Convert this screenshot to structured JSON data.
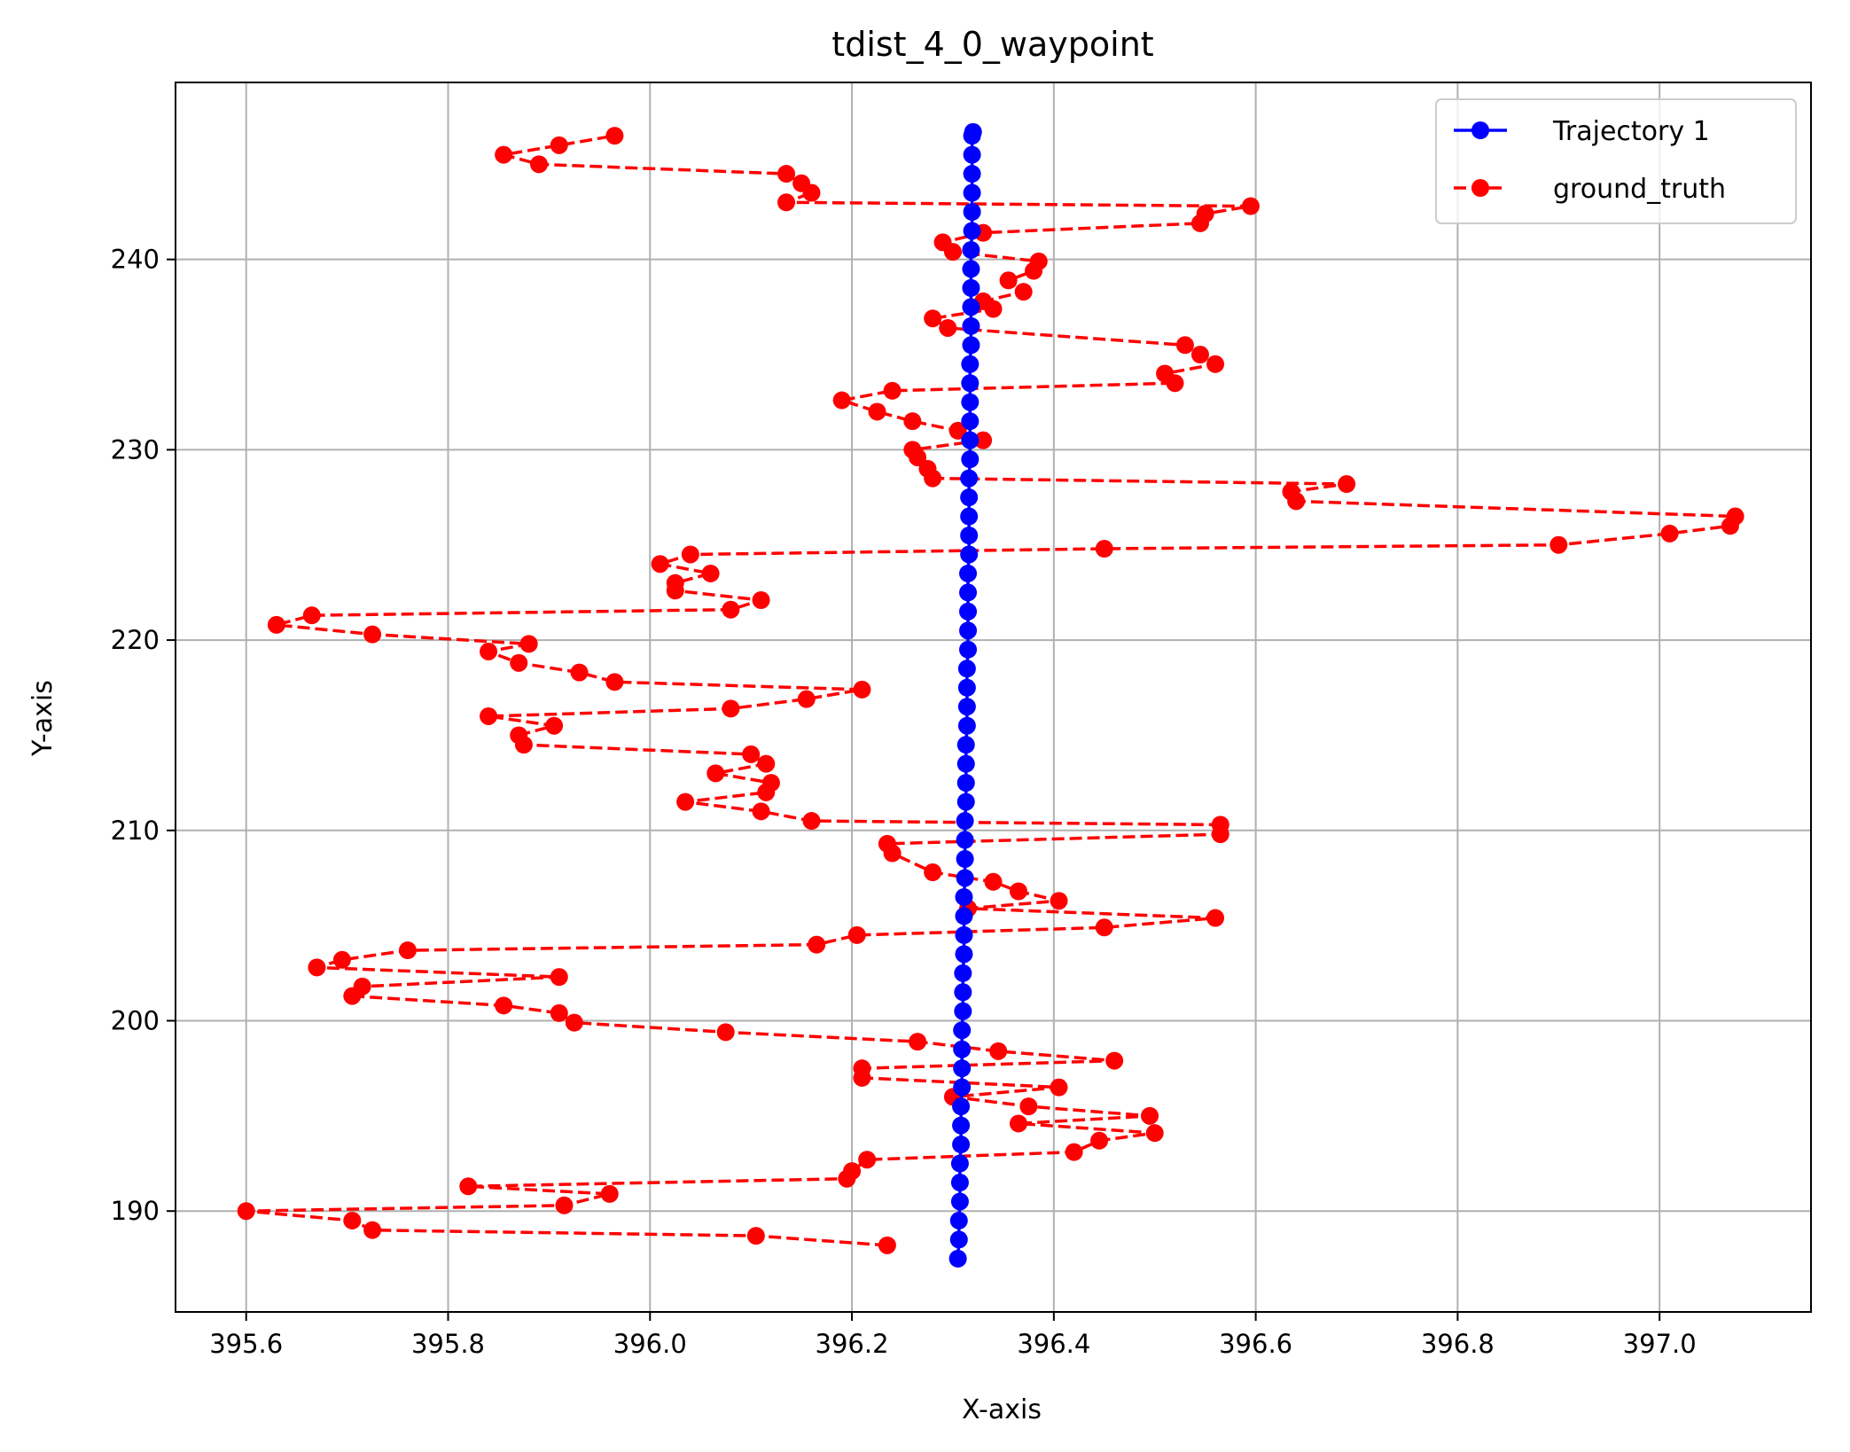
{
  "chart_data": {
    "type": "line",
    "title": "tdist_4_0_waypoint",
    "xlabel": "X-axis",
    "ylabel": "Y-axis",
    "xlim": [
      395.53,
      397.15
    ],
    "ylim": [
      184.7,
      249.3
    ],
    "xticks": [
      395.6,
      395.8,
      396.0,
      396.2,
      396.4,
      396.6,
      396.8,
      397.0
    ],
    "xtick_labels": [
      "395.6",
      "395.8",
      "396.0",
      "396.2",
      "396.4",
      "396.6",
      "396.8",
      "397.0"
    ],
    "yticks": [
      190,
      200,
      210,
      220,
      230,
      240
    ],
    "ytick_labels": [
      "190",
      "200",
      "210",
      "220",
      "230",
      "240"
    ],
    "grid": true,
    "legend_position": "top-right",
    "series": [
      {
        "name": "Trajectory 1",
        "color": "#0000ff",
        "line_style": "solid",
        "marker": "circle",
        "x": [
          396.305,
          396.306,
          396.306,
          396.307,
          396.307,
          396.307,
          396.308,
          396.308,
          396.308,
          396.309,
          396.309,
          396.309,
          396.309,
          396.31,
          396.31,
          396.31,
          396.311,
          396.311,
          396.311,
          396.311,
          396.312,
          396.312,
          396.312,
          396.312,
          396.313,
          396.313,
          396.313,
          396.313,
          396.314,
          396.314,
          396.314,
          396.314,
          396.315,
          396.315,
          396.315,
          396.315,
          396.315,
          396.316,
          396.316,
          396.316,
          396.316,
          396.316,
          396.317,
          396.317,
          396.317,
          396.317,
          396.317,
          396.317,
          396.318,
          396.318,
          396.318,
          396.318,
          396.318,
          396.318,
          396.319,
          396.319,
          396.319,
          396.319,
          396.319,
          396.319,
          396.32
        ],
        "y": [
          187.5,
          188.5,
          189.5,
          190.5,
          191.5,
          192.5,
          193.5,
          194.5,
          195.5,
          196.5,
          197.5,
          198.5,
          199.5,
          200.5,
          201.5,
          202.5,
          203.5,
          204.5,
          205.5,
          206.5,
          207.5,
          208.5,
          209.5,
          210.5,
          211.5,
          212.5,
          213.5,
          214.5,
          215.5,
          216.5,
          217.5,
          218.5,
          219.5,
          220.5,
          221.5,
          222.5,
          223.5,
          224.5,
          225.5,
          226.5,
          227.5,
          228.5,
          229.5,
          230.5,
          231.5,
          232.5,
          233.5,
          234.5,
          235.5,
          236.5,
          237.5,
          238.5,
          239.5,
          240.5,
          241.5,
          242.5,
          243.5,
          244.5,
          245.5,
          246.5,
          246.7
        ]
      },
      {
        "name": "ground_truth",
        "color": "#ff0000",
        "line_style": "dashed",
        "marker": "circle",
        "x": [
          396.235,
          396.105,
          395.725,
          395.705,
          395.6,
          395.915,
          395.96,
          395.82,
          396.195,
          396.2,
          396.215,
          396.42,
          396.445,
          396.5,
          396.365,
          396.495,
          396.375,
          396.3,
          396.405,
          396.21,
          396.21,
          396.46,
          396.345,
          396.265,
          396.075,
          395.925,
          395.91,
          395.855,
          395.705,
          395.715,
          395.91,
          395.67,
          395.695,
          395.76,
          396.165,
          396.205,
          396.45,
          396.56,
          396.315,
          396.405,
          396.365,
          396.34,
          396.28,
          396.24,
          396.235,
          396.565,
          396.565,
          396.16,
          396.11,
          396.035,
          396.115,
          396.12,
          396.065,
          396.115,
          396.1,
          395.875,
          395.87,
          395.905,
          395.84,
          396.08,
          396.155,
          396.21,
          395.965,
          395.93,
          395.87,
          395.84,
          395.88,
          395.725,
          395.63,
          395.665,
          396.08,
          396.11,
          396.025,
          396.025,
          396.06,
          396.01,
          396.04,
          396.45,
          396.9,
          397.01,
          397.07,
          397.075,
          396.64,
          396.635,
          396.69,
          396.28,
          396.275,
          396.265,
          396.26,
          396.33,
          396.305,
          396.26,
          396.225,
          396.19,
          396.24,
          396.52,
          396.51,
          396.56,
          396.545,
          396.53,
          396.295,
          396.28,
          396.34,
          396.33,
          396.37,
          396.355,
          396.38,
          396.385,
          396.3,
          396.29,
          396.33,
          396.545,
          396.55,
          396.595,
          396.135,
          396.16,
          396.15,
          396.135,
          395.89,
          395.855,
          395.91,
          395.965
        ],
        "y": [
          188.2,
          188.7,
          189.0,
          189.5,
          190.0,
          190.3,
          190.9,
          191.3,
          191.7,
          192.1,
          192.7,
          193.1,
          193.7,
          194.1,
          194.6,
          195.0,
          195.5,
          196.0,
          196.5,
          197.0,
          197.5,
          197.9,
          198.4,
          198.9,
          199.4,
          199.9,
          200.4,
          200.8,
          201.3,
          201.8,
          202.3,
          202.8,
          203.2,
          203.7,
          204.0,
          204.5,
          204.9,
          205.4,
          205.9,
          206.3,
          206.8,
          207.3,
          207.8,
          208.8,
          209.3,
          209.8,
          210.3,
          210.5,
          211.0,
          211.5,
          212.0,
          212.5,
          213.0,
          213.5,
          214.0,
          214.5,
          215.0,
          215.5,
          216.0,
          216.4,
          216.9,
          217.4,
          217.8,
          218.3,
          218.8,
          219.4,
          219.8,
          220.3,
          220.8,
          221.3,
          221.6,
          222.1,
          222.6,
          223.0,
          223.5,
          224.0,
          224.5,
          224.8,
          225.0,
          225.6,
          226.0,
          226.5,
          227.3,
          227.8,
          228.2,
          228.5,
          229.0,
          229.6,
          230.0,
          230.5,
          231.0,
          231.5,
          232.0,
          232.6,
          233.1,
          233.5,
          234.0,
          234.5,
          235.0,
          235.5,
          236.4,
          236.9,
          237.4,
          237.8,
          238.3,
          238.9,
          239.4,
          239.9,
          240.4,
          240.9,
          241.4,
          241.9,
          242.4,
          242.8,
          243.0,
          243.5,
          244.0,
          244.5,
          245.0,
          245.5,
          246.0,
          246.5
        ]
      }
    ]
  }
}
